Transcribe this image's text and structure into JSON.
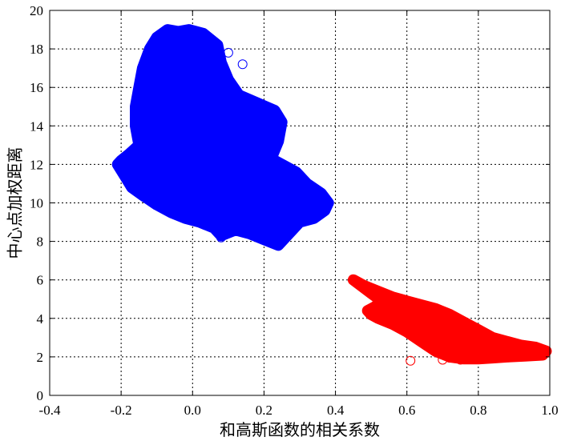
{
  "chart_data": {
    "type": "scatter",
    "title": "",
    "xlabel": "和高斯函数的相关系数",
    "ylabel": "中心点加权距离",
    "xlim": [
      -0.4,
      1.0
    ],
    "ylim": [
      0,
      20
    ],
    "xticks": [
      -0.4,
      -0.2,
      0,
      0.2,
      0.4,
      0.6,
      0.8,
      1.0
    ],
    "xtick_labels": [
      "-0.4",
      "-0.2",
      "0.0",
      "0.2",
      "0.4",
      "0.6",
      "0.8",
      "1.0"
    ],
    "yticks": [
      0,
      2,
      4,
      6,
      8,
      10,
      12,
      14,
      16,
      18,
      20
    ],
    "ytick_labels": [
      "0",
      "2",
      "4",
      "6",
      "8",
      "10",
      "12",
      "14",
      "16",
      "18",
      "20"
    ],
    "grid": true,
    "legend": "none",
    "marker": "circle-open",
    "series": [
      {
        "color": "#0000ff",
        "points": [
          [
            -0.21,
            12.0
          ],
          [
            -0.19,
            11.4
          ],
          [
            -0.17,
            10.8
          ],
          [
            -0.14,
            10.4
          ],
          [
            -0.1,
            9.9
          ],
          [
            -0.06,
            9.5
          ],
          [
            -0.02,
            9.2
          ],
          [
            0.02,
            9.0
          ],
          [
            0.06,
            8.7
          ],
          [
            0.08,
            8.3
          ],
          [
            0.12,
            8.6
          ],
          [
            0.16,
            8.4
          ],
          [
            0.2,
            8.1
          ],
          [
            0.24,
            7.8
          ],
          [
            0.27,
            8.4
          ],
          [
            0.3,
            9.0
          ],
          [
            0.34,
            9.2
          ],
          [
            0.37,
            9.6
          ],
          [
            0.38,
            10.0
          ],
          [
            0.36,
            10.5
          ],
          [
            0.32,
            11.0
          ],
          [
            0.29,
            11.6
          ],
          [
            0.25,
            12.0
          ],
          [
            0.22,
            12.3
          ],
          [
            0.24,
            13.2
          ],
          [
            0.25,
            14.2
          ],
          [
            0.23,
            14.8
          ],
          [
            0.18,
            15.2
          ],
          [
            0.13,
            15.6
          ],
          [
            0.1,
            16.4
          ],
          [
            0.08,
            17.3
          ],
          [
            0.07,
            18.2
          ],
          [
            0.03,
            18.8
          ],
          [
            -0.01,
            19.0
          ],
          [
            -0.04,
            18.9
          ],
          [
            -0.07,
            19.0
          ],
          [
            -0.1,
            18.6
          ],
          [
            -0.12,
            18.0
          ],
          [
            -0.14,
            17.0
          ],
          [
            -0.15,
            16.0
          ],
          [
            -0.16,
            15.0
          ],
          [
            -0.16,
            14.0
          ],
          [
            -0.15,
            13.0
          ],
          [
            -0.18,
            12.5
          ],
          [
            -0.2,
            12.2
          ],
          [
            0.1,
            17.8
          ],
          [
            0.14,
            17.2
          ],
          [
            0.08,
            8.2
          ],
          [
            0.0,
            9.6
          ],
          [
            -0.05,
            10.5
          ],
          [
            0.05,
            11.0
          ],
          [
            0.1,
            12.0
          ],
          [
            0.0,
            13.0
          ],
          [
            -0.08,
            14.0
          ],
          [
            -0.05,
            15.5
          ],
          [
            -0.08,
            17.0
          ],
          [
            0.02,
            16.0
          ],
          [
            0.06,
            14.0
          ],
          [
            0.15,
            13.0
          ],
          [
            0.2,
            10.5
          ],
          [
            0.28,
            10.0
          ],
          [
            -0.12,
            11.5
          ],
          [
            -0.06,
            12.5
          ]
        ]
      },
      {
        "color": "#ff0000",
        "points": [
          [
            0.45,
            6.0
          ],
          [
            0.48,
            5.7
          ],
          [
            0.52,
            5.4
          ],
          [
            0.56,
            5.1
          ],
          [
            0.6,
            4.9
          ],
          [
            0.64,
            4.7
          ],
          [
            0.68,
            4.5
          ],
          [
            0.72,
            4.2
          ],
          [
            0.76,
            3.8
          ],
          [
            0.8,
            3.4
          ],
          [
            0.84,
            3.0
          ],
          [
            0.88,
            2.8
          ],
          [
            0.92,
            2.6
          ],
          [
            0.96,
            2.5
          ],
          [
            0.99,
            2.3
          ],
          [
            0.98,
            2.1
          ],
          [
            0.93,
            2.05
          ],
          [
            0.88,
            2.0
          ],
          [
            0.84,
            1.95
          ],
          [
            0.8,
            1.9
          ],
          [
            0.76,
            1.9
          ],
          [
            0.72,
            2.0
          ],
          [
            0.68,
            2.3
          ],
          [
            0.64,
            2.8
          ],
          [
            0.6,
            3.3
          ],
          [
            0.56,
            3.7
          ],
          [
            0.52,
            4.0
          ],
          [
            0.5,
            4.2
          ],
          [
            0.49,
            4.4
          ],
          [
            0.51,
            4.6
          ],
          [
            0.53,
            4.9
          ],
          [
            0.5,
            5.3
          ],
          [
            0.61,
            1.8
          ],
          [
            0.7,
            1.85
          ],
          [
            0.72,
            1.95
          ],
          [
            0.75,
            1.85
          ],
          [
            0.6,
            4.2
          ],
          [
            0.66,
            3.9
          ],
          [
            0.7,
            3.6
          ],
          [
            0.74,
            3.2
          ],
          [
            0.78,
            2.9
          ],
          [
            0.82,
            2.6
          ],
          [
            0.86,
            2.4
          ],
          [
            0.9,
            2.3
          ],
          [
            0.95,
            2.3
          ],
          [
            0.56,
            4.5
          ],
          [
            0.62,
            4.4
          ],
          [
            0.58,
            5.0
          ]
        ]
      }
    ]
  }
}
